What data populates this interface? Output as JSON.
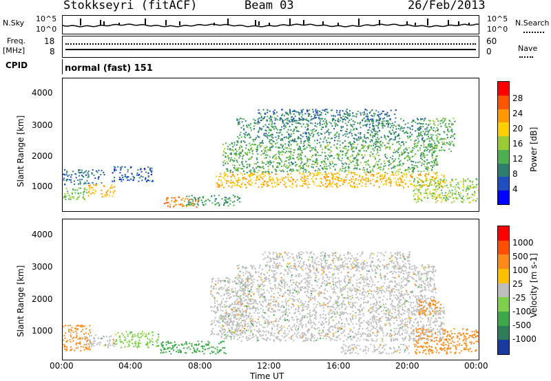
{
  "header": {
    "station": "Stokkseyri (fitACF)",
    "beam": "Beam 03",
    "date": "26/Feb/2013"
  },
  "noise_panel": {
    "left_label": "N.Sky",
    "left_ticks": [
      "10^5",
      "10^0"
    ],
    "right_ticks": [
      "10^5",
      "10^0"
    ],
    "right_label": "N.Search"
  },
  "freq_panel": {
    "left_label_line1": "Freq.",
    "left_label_line2": "[MHz]",
    "left_ticks": [
      "18",
      "8"
    ],
    "right_ticks": [
      "60",
      "0"
    ],
    "right_label": "Nave"
  },
  "cpid_panel": {
    "label": "CPID",
    "mode": "normal (fast) 151"
  },
  "x_axis": {
    "ticks": [
      "00:00",
      "04:00",
      "08:00",
      "12:00",
      "16:00",
      "20:00",
      "00:00"
    ],
    "label": "Time UT"
  },
  "chart_data": [
    {
      "type": "heatmap",
      "title": "",
      "ylabel": "Slant Range [km]",
      "yticks": [
        "1000",
        "2000",
        "3000",
        "4000"
      ],
      "ylim": [
        200,
        4600
      ],
      "xlim_hours": [
        0,
        24
      ],
      "colorbar": {
        "label": "Power [dB]",
        "ticks": [
          "28",
          "24",
          "20",
          "16",
          "12",
          "8",
          "4"
        ],
        "range": [
          0,
          32
        ],
        "colors": [
          "#0000ff",
          "#1f4fbf",
          "#2f7f6f",
          "#4caf50",
          "#9acd32",
          "#ffd000",
          "#ff9900",
          "#ff5500",
          "#ff0000"
        ]
      },
      "regions": [
        {
          "t0": 0.0,
          "t1": 2.4,
          "r0": 1100,
          "r1": 1600,
          "level": 6
        },
        {
          "t0": 1.4,
          "t1": 3.0,
          "r0": 700,
          "r1": 1100,
          "level": 22
        },
        {
          "t0": 0.0,
          "t1": 1.4,
          "r0": 600,
          "r1": 1000,
          "level": 14
        },
        {
          "t0": 2.8,
          "t1": 5.2,
          "r0": 1200,
          "r1": 1700,
          "level": 5
        },
        {
          "t0": 5.8,
          "t1": 7.8,
          "r0": 350,
          "r1": 700,
          "level": 26
        },
        {
          "t0": 7.0,
          "t1": 10.2,
          "r0": 400,
          "r1": 750,
          "level": 10
        },
        {
          "t0": 8.8,
          "t1": 22.0,
          "r0": 1000,
          "r1": 1500,
          "level": 22
        },
        {
          "t0": 9.2,
          "t1": 21.6,
          "r0": 1500,
          "r1": 2500,
          "level": 12
        },
        {
          "t0": 10.0,
          "t1": 21.0,
          "r0": 2500,
          "r1": 3300,
          "level": 9
        },
        {
          "t0": 11.2,
          "t1": 19.2,
          "r0": 3200,
          "r1": 3600,
          "level": 7
        },
        {
          "t0": 20.2,
          "t1": 24.0,
          "r0": 500,
          "r1": 1300,
          "level": 16
        },
        {
          "t0": 21.0,
          "t1": 22.6,
          "r0": 2200,
          "r1": 3300,
          "level": 12
        }
      ]
    },
    {
      "type": "heatmap",
      "title": "",
      "ylabel": "Slant Range [km]",
      "yticks": [
        "1000",
        "2000",
        "3000",
        "4000"
      ],
      "ylim": [
        200,
        4600
      ],
      "xlim_hours": [
        0,
        24
      ],
      "colorbar": {
        "label": "Velocity [m s-1]",
        "ticks": [
          "1000",
          "500",
          "100",
          "25",
          "-25",
          "-100",
          "-500",
          "-1000"
        ],
        "colors": [
          "#1a3aa0",
          "#2e7d5a",
          "#3da84a",
          "#7fd04a",
          "#bdbdbd",
          "#ffc000",
          "#ff8a1a",
          "#ff5000",
          "#ff0000"
        ]
      },
      "regions": [
        {
          "t0": 0.0,
          "t1": 1.6,
          "r0": 500,
          "r1": 1300,
          "vel": -200
        },
        {
          "t0": 1.2,
          "t1": 3.0,
          "r0": 600,
          "r1": 1000,
          "vel": 0
        },
        {
          "t0": 3.0,
          "t1": 5.5,
          "r0": 600,
          "r1": 1100,
          "vel": 80
        },
        {
          "t0": 5.6,
          "t1": 9.4,
          "r0": 400,
          "r1": 800,
          "vel": 300
        },
        {
          "t0": 8.5,
          "t1": 11.0,
          "r0": 1000,
          "r1": 2800,
          "vel": 0
        },
        {
          "t0": 9.0,
          "t1": 22.0,
          "r0": 800,
          "r1": 1900,
          "vel": 0
        },
        {
          "t0": 10.0,
          "t1": 21.5,
          "r0": 1900,
          "r1": 3200,
          "vel": 0
        },
        {
          "t0": 11.5,
          "t1": 20.0,
          "r0": 3100,
          "r1": 3600,
          "vel": 0
        },
        {
          "t0": 16.0,
          "t1": 20.0,
          "r0": 400,
          "r1": 700,
          "vel": 0
        },
        {
          "t0": 20.2,
          "t1": 24.0,
          "r0": 400,
          "r1": 1200,
          "vel": -300
        },
        {
          "t0": 20.5,
          "t1": 21.8,
          "r0": 1600,
          "r1": 2100,
          "vel": -150
        }
      ]
    }
  ]
}
